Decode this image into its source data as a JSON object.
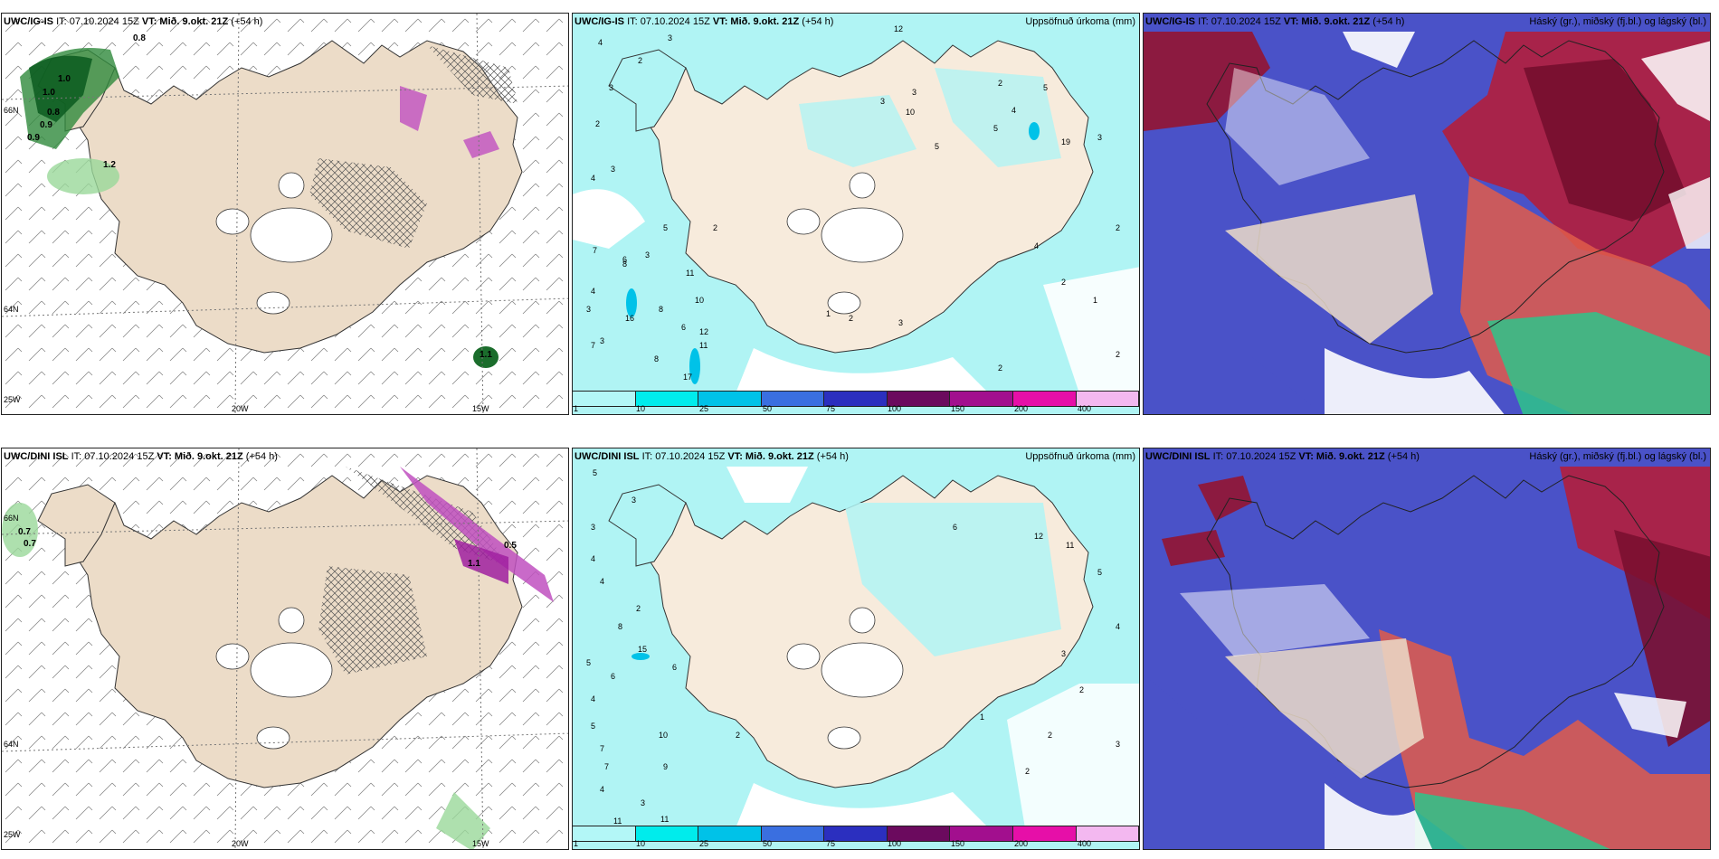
{
  "panels": [
    {
      "model": "UWC/IG-IS",
      "info": "IT: 07.10.2024 15Z",
      "vt_label": "VT:",
      "vt": "Mið. 9.okt. 21Z",
      "lead": "(+54 h)",
      "right_title": ""
    },
    {
      "model": "UWC/IG-IS",
      "info": "IT: 07.10.2024 15Z",
      "vt_label": "VT:",
      "vt": "Mið. 9.okt. 21Z",
      "lead": "(+54 h)",
      "right_title": "Uppsöfnuð úrkoma (mm)"
    },
    {
      "model": "UWC/IG-IS",
      "info": "IT: 07.10.2024 15Z",
      "vt_label": "VT:",
      "vt": "Mið. 9.okt. 21Z",
      "lead": "(+54 h)",
      "right_title": "Háský (gr.), miðský (fj.bl.) og lágský (bl.)"
    },
    {
      "model": "UWC/DINI ISL",
      "info": "IT: 07.10.2024 15Z",
      "vt_label": "VT:",
      "vt": "Mið. 9.okt. 21Z",
      "lead": "(+54 h)",
      "right_title": ""
    },
    {
      "model": "UWC/DINI ISL",
      "info": "IT: 07.10.2024 15Z",
      "vt_label": "VT:",
      "vt": "Mið. 9.okt. 21Z",
      "lead": "(+54 h)",
      "right_title": "Uppsöfnuð úrkoma (mm)"
    },
    {
      "model": "UWC/DINI ISL",
      "info": "IT: 07.10.2024 15Z",
      "vt_label": "VT:",
      "vt": "Mið. 9.okt. 21Z",
      "lead": "(+54 h)",
      "right_title": "Háský (gr.), miðský (fj.bl.) og lágský (bl.)"
    }
  ],
  "axis_labels": {
    "lon": [
      "20W",
      "15W"
    ],
    "lat": [
      "66N",
      "64N"
    ],
    "lon_left": "25W"
  },
  "precip_scale": {
    "labels": [
      "1",
      "10",
      "25",
      "50",
      "75",
      "100",
      "150",
      "200",
      "400"
    ],
    "colors": [
      "#b3f7f7",
      "#00ecec",
      "#00c2e8",
      "#3a6fe0",
      "#2b2fbf",
      "#6b0a5e",
      "#a20f8e",
      "#e60fa8",
      "#f3b8f0"
    ]
  },
  "colors": {
    "land": "#ecdcc8",
    "ocean_precip": "#b0f4f4",
    "cloud_high": "#c4224a",
    "cloud_mid": "#4a52c8",
    "cloud_low": "#2ec48a"
  },
  "panel1_labels": [
    "0.8",
    "1.0",
    "1.0",
    "0.8",
    "0.9",
    "0.9",
    "1.2",
    "1.1"
  ],
  "panel4_labels": [
    "0.7",
    "0.7",
    "0.5",
    "1.1"
  ],
  "panel2_numbers": [
    "4",
    "3",
    "2",
    "3",
    "2",
    "4",
    "3",
    "7",
    "6",
    "3",
    "5",
    "12",
    "3",
    "10",
    "3",
    "5",
    "2",
    "4",
    "3",
    "8",
    "7",
    "6",
    "11",
    "10",
    "8",
    "16",
    "3",
    "8",
    "12",
    "11",
    "17",
    "2",
    "4",
    "5",
    "19",
    "3",
    "2",
    "1",
    "2",
    "3",
    "4",
    "2",
    "1",
    "2",
    "2",
    "5"
  ],
  "panel5_numbers": [
    "5",
    "3",
    "3",
    "4",
    "4",
    "2",
    "8",
    "6",
    "4",
    "5",
    "15",
    "6",
    "5",
    "7",
    "10",
    "7",
    "9",
    "4",
    "3",
    "11",
    "11",
    "2",
    "6",
    "12",
    "11",
    "5",
    "4",
    "3",
    "2",
    "1",
    "2",
    "2",
    "3"
  ]
}
